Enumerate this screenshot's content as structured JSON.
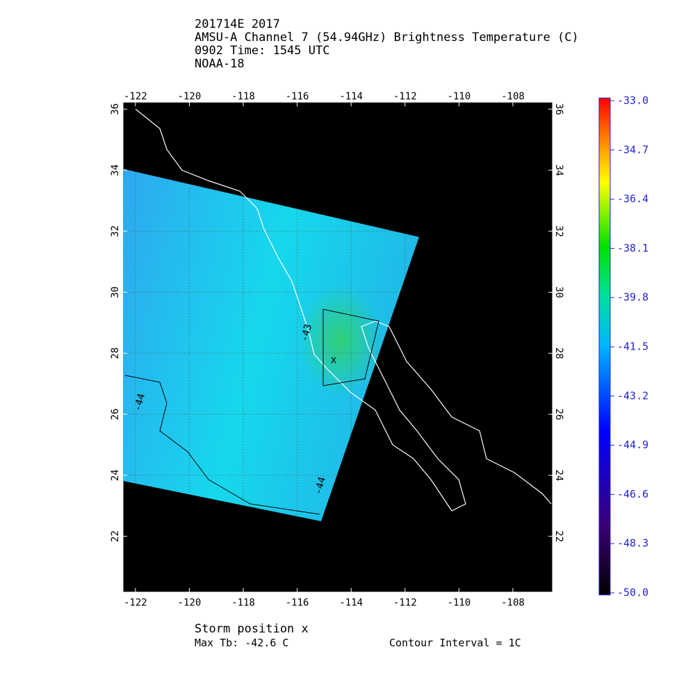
{
  "header": {
    "lines": [
      "201714E 2017",
      "AMSU-A Channel 7 (54.94GHz) Brightness Temperature (C)",
      "0902 Time: 1545 UTC",
      "NOAA-18"
    ]
  },
  "map": {
    "xlim": [
      -122.46,
      -106.53
    ],
    "ylim": [
      20.17,
      36.23
    ],
    "xticks": [
      -122,
      -120,
      -118,
      -116,
      -114,
      -112,
      -110,
      -108
    ],
    "yticks": [
      22,
      24,
      26,
      28,
      30,
      32,
      34,
      36
    ],
    "contour_labels": [
      -43,
      -44,
      -44
    ]
  },
  "colorbar": {
    "lim": [
      -50,
      -33
    ],
    "ticks": [
      {
        "value": -33,
        "label": "-33.0"
      },
      {
        "value": -34.7,
        "label": "-34.7"
      },
      {
        "value": -36.4,
        "label": "-36.4"
      },
      {
        "value": -38.1,
        "label": "-38.1"
      },
      {
        "value": -39.8,
        "label": "-39.8"
      },
      {
        "value": -41.5,
        "label": "-41.5"
      },
      {
        "value": -43.2,
        "label": "-43.2"
      },
      {
        "value": -44.9,
        "label": "-44.9"
      },
      {
        "value": -46.6,
        "label": "-46.6"
      },
      {
        "value": -48.3,
        "label": "-48.3"
      },
      {
        "value": -50,
        "label": "-50.0"
      }
    ]
  },
  "footer": {
    "storm": "Storm position x",
    "max_tb": "Max Tb: -42.6    C",
    "interval": "Contour Interval = 1C"
  }
}
